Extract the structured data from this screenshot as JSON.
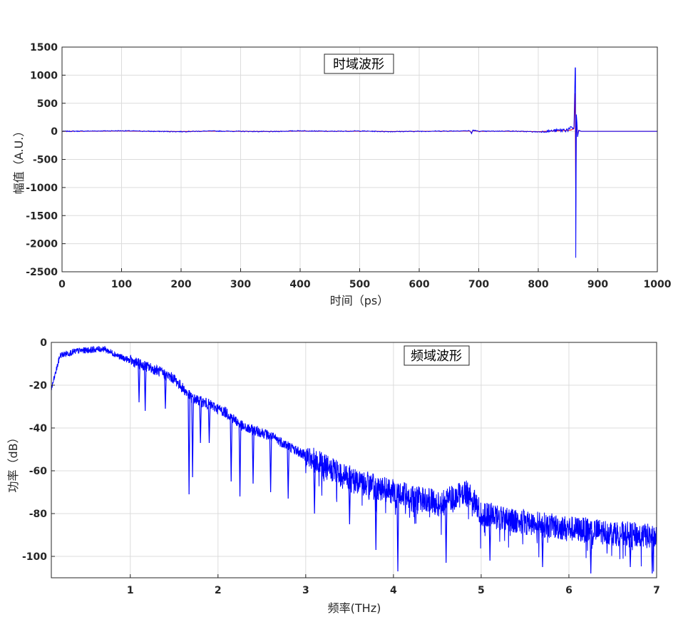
{
  "figure": {
    "background": "#ffffff",
    "line_color": "#0000ff",
    "accent_color": "#ff0000"
  },
  "chart_data": [
    {
      "type": "line",
      "title": "时域波形",
      "xlabel": "时间（ps）",
      "ylabel": "幅值（A.U.）",
      "xlim": [
        0,
        1000
      ],
      "ylim": [
        -2500,
        1500
      ],
      "xticks": [
        "0",
        "100",
        "200",
        "300",
        "400",
        "500",
        "600",
        "700",
        "800",
        "900",
        "1000"
      ],
      "yticks": [
        "1500",
        "1000",
        "500",
        "0",
        "-500",
        "-1000",
        "-1500",
        "-2000",
        "-2500"
      ],
      "grid": true,
      "series": [
        {
          "x": [
            0,
            50,
            100,
            150,
            200,
            250,
            300,
            350,
            400,
            450,
            500,
            550,
            600,
            650,
            685,
            688,
            690,
            700,
            750,
            800,
            840,
            855,
            860,
            862,
            863,
            864,
            865,
            866,
            868,
            872,
            880,
            900,
            950,
            1000
          ],
          "y": [
            0,
            5,
            10,
            0,
            -5,
            5,
            0,
            -5,
            10,
            0,
            5,
            -5,
            0,
            5,
            10,
            -40,
            20,
            0,
            5,
            -10,
            20,
            40,
            80,
            1130,
            -2250,
            300,
            150,
            -100,
            20,
            0,
            0,
            0,
            0,
            0
          ]
        }
      ]
    },
    {
      "type": "line",
      "title": "频域波形",
      "xlabel": "频率(THz)",
      "ylabel": "功率（dB）",
      "xlim": [
        0.1,
        7
      ],
      "ylim": [
        -110,
        0
      ],
      "xticks": [
        "1",
        "2",
        "3",
        "4",
        "5",
        "6",
        "7"
      ],
      "yticks": [
        "0",
        "-20",
        "-40",
        "-60",
        "-80",
        "-100"
      ],
      "grid": true,
      "series": [
        {
          "x": [
            0.1,
            0.2,
            0.4,
            0.7,
            0.9,
            1.1,
            1.3,
            1.5,
            1.7,
            1.9,
            2.1,
            2.3,
            2.5,
            2.7,
            3.0,
            3.3,
            3.6,
            4.0,
            4.5,
            4.85,
            5.0,
            5.5,
            6.0,
            6.5,
            7.0
          ],
          "y": [
            -22,
            -6,
            -4,
            -3,
            -7,
            -10,
            -13,
            -17,
            -26,
            -29,
            -33,
            -40,
            -42,
            -46,
            -53,
            -60,
            -65,
            -70,
            -75,
            -70,
            -80,
            -84,
            -87,
            -89,
            -91
          ]
        }
      ],
      "dips": [
        {
          "x": 1.1,
          "y": -28
        },
        {
          "x": 1.17,
          "y": -32
        },
        {
          "x": 1.4,
          "y": -31
        },
        {
          "x": 1.67,
          "y": -71
        },
        {
          "x": 1.71,
          "y": -63
        },
        {
          "x": 1.8,
          "y": -47
        },
        {
          "x": 1.9,
          "y": -47
        },
        {
          "x": 2.15,
          "y": -65
        },
        {
          "x": 2.25,
          "y": -72
        },
        {
          "x": 2.4,
          "y": -66
        },
        {
          "x": 2.6,
          "y": -70
        },
        {
          "x": 2.8,
          "y": -73
        },
        {
          "x": 3.1,
          "y": -80
        },
        {
          "x": 3.5,
          "y": -85
        },
        {
          "x": 3.8,
          "y": -97
        },
        {
          "x": 4.05,
          "y": -107
        },
        {
          "x": 4.6,
          "y": -103
        },
        {
          "x": 5.1,
          "y": -102
        },
        {
          "x": 5.7,
          "y": -105
        },
        {
          "x": 6.25,
          "y": -108
        },
        {
          "x": 6.7,
          "y": -105
        },
        {
          "x": 6.95,
          "y": -108
        }
      ]
    }
  ]
}
